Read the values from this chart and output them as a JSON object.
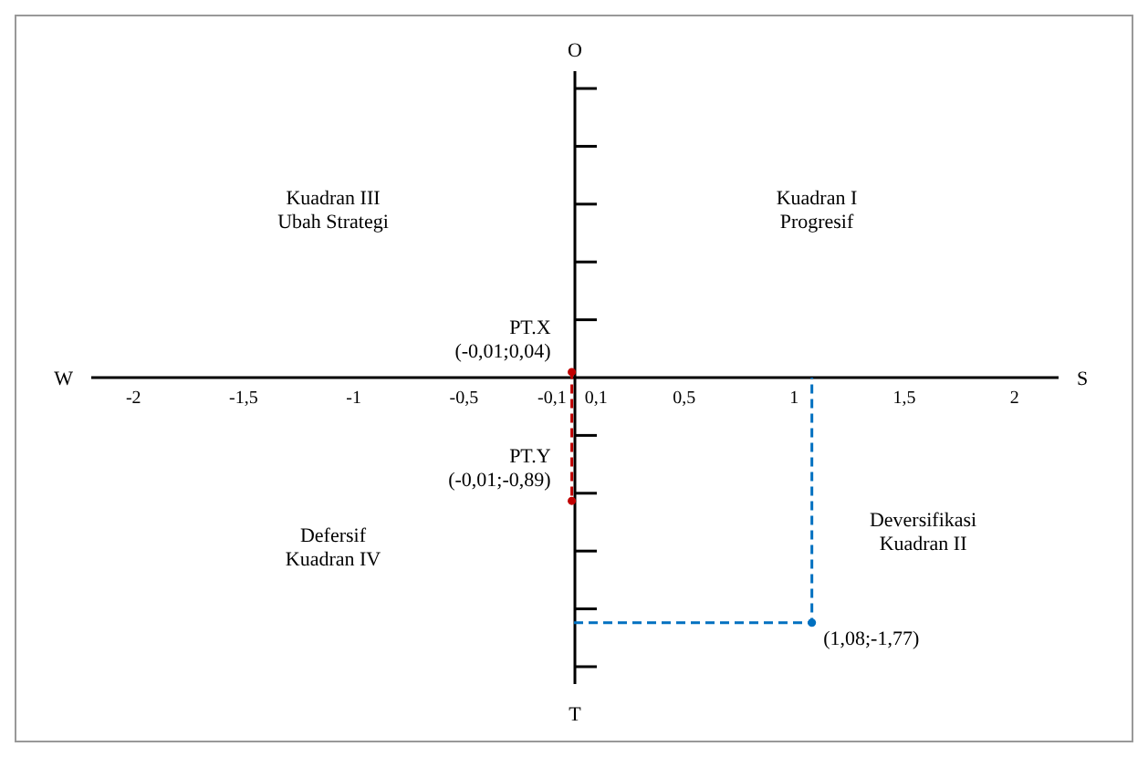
{
  "chart_data": {
    "type": "scatter",
    "tick_labels": "x",
    "xlim": [
      -2.2,
      2.2
    ],
    "xticks": [
      {
        "value": -2,
        "label": "-2"
      },
      {
        "value": -1.5,
        "label": "-1,5"
      },
      {
        "value": -1,
        "label": "-1"
      },
      {
        "value": -0.5,
        "label": "-0,5"
      },
      {
        "value": -0.1,
        "label": "-0,1"
      },
      {
        "value": 0.1,
        "label": "0,1"
      },
      {
        "value": 0.5,
        "label": "0,5"
      },
      {
        "value": 1,
        "label": "1"
      },
      {
        "value": 1.5,
        "label": "1,5"
      },
      {
        "value": 2,
        "label": "2"
      }
    ],
    "series": [
      {
        "marker": "circle",
        "color": "#c00000",
        "x": [
          -0.01,
          -0.01
        ],
        "values": [
          0.04,
          -0.89
        ],
        "value_labels": [
          "(-0,01;0,04)",
          "(-0,01;-0,89)"
        ]
      },
      {
        "marker": "circle",
        "color": "#0070c0",
        "x": [
          1.08
        ],
        "values": [
          -1.77
        ],
        "value_labels": [
          "(1,08;-1,77)"
        ]
      },
      {
        "type": "line",
        "line_style": "dashed",
        "color": "#c00000",
        "x": [
          0,
          -0.01,
          -0.01,
          0
        ],
        "values": [
          0.04,
          0.04,
          -0.89,
          -0.89
        ]
      },
      {
        "type": "line",
        "line_style": "dashed",
        "color": "#0070c0",
        "x": [
          0,
          1.08,
          1.08
        ],
        "values": [
          -1.77,
          -1.77,
          0
        ]
      }
    ],
    "annotations": [
      "Kuadran III\nUbah Strategi",
      "Kuadran I\nProgresif",
      "Defersif\nKuadran IV",
      "Deversifikasi\nKuadran II",
      "O",
      "T",
      "W",
      "S",
      "PT.X",
      "PT.Y"
    ]
  }
}
